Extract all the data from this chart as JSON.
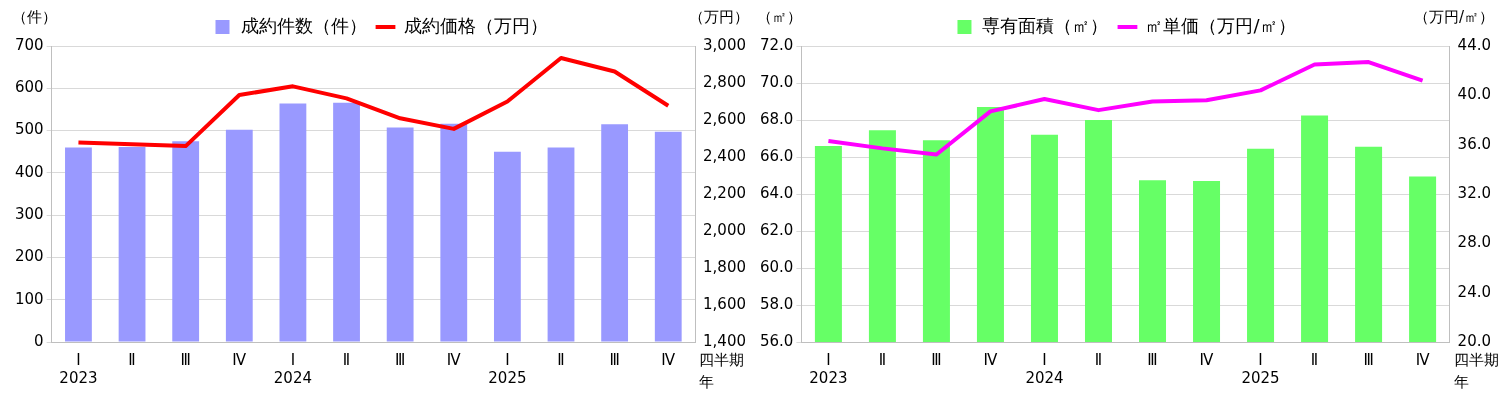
{
  "chart_data": [
    {
      "type": "bar",
      "ylabel": "（件）",
      "y2label": "（万円）",
      "xlabel": "四半期年",
      "categories": [
        "Ⅰ\n2023",
        "Ⅱ",
        "Ⅲ",
        "Ⅳ",
        "Ⅰ\n2024",
        "Ⅱ",
        "Ⅲ",
        "Ⅳ",
        "Ⅰ\n2025",
        "Ⅱ",
        "Ⅲ",
        "Ⅳ"
      ],
      "series": [
        {
          "name": "成約件数（件）",
          "color": "#9999ff",
          "values": [
            460,
            461,
            475,
            502,
            564,
            566,
            507,
            516,
            450,
            460,
            515,
            497
          ]
        },
        {
          "name": "成約価格（万円）",
          "type": "line",
          "axis": "y2",
          "color": "#ff0000",
          "values": [
            2479,
            2469,
            2459,
            2735,
            2782,
            2717,
            2609,
            2552,
            2700,
            2935,
            2862,
            2677
          ]
        }
      ],
      "ylim": [
        0,
        700
      ],
      "yticks": [
        0,
        100,
        200,
        300,
        400,
        500,
        600,
        700
      ],
      "y2lim": [
        1400,
        3000
      ],
      "y2ticks": [
        {
          "value": 1400,
          "label": "1,400"
        },
        {
          "value": 1600,
          "label": "1,600"
        },
        {
          "value": 1800,
          "label": "1,800"
        },
        {
          "value": 2000,
          "label": "2,000"
        },
        {
          "value": 2200,
          "label": "2,200"
        },
        {
          "value": 2400,
          "label": "2,400"
        },
        {
          "value": 2600,
          "label": "2,600"
        },
        {
          "value": 2800,
          "label": "2,800"
        },
        {
          "value": 3000,
          "label": "3,000"
        }
      ],
      "grid": "y",
      "legend": "top",
      "marker": "none"
    },
    {
      "type": "bar",
      "ylabel": "（㎡）",
      "y2label": "（万円/㎡）",
      "xlabel": "四半期年",
      "categories": [
        "Ⅰ\n2023",
        "Ⅱ",
        "Ⅲ",
        "Ⅳ",
        "Ⅰ\n2024",
        "Ⅱ",
        "Ⅲ",
        "Ⅳ",
        "Ⅰ\n2025",
        "Ⅱ",
        "Ⅲ",
        "Ⅳ"
      ],
      "series": [
        {
          "name": "専有面積（㎡）",
          "color": "#66ff66",
          "values": [
            66.6,
            67.45,
            66.9,
            68.7,
            67.2,
            68.0,
            64.75,
            64.7,
            66.45,
            68.25,
            66.55,
            64.95
          ]
        },
        {
          "name": "㎡単価（万円/㎡）",
          "type": "line",
          "axis": "y2",
          "color": "#ff00ff",
          "values": [
            36.3,
            35.7,
            35.2,
            38.7,
            39.7,
            38.8,
            39.5,
            39.6,
            40.4,
            42.5,
            42.7,
            41.2
          ]
        }
      ],
      "ylim": [
        56,
        72
      ],
      "yticks": [
        {
          "value": 56,
          "label": "56.0"
        },
        {
          "value": 58,
          "label": "58.0"
        },
        {
          "value": 60,
          "label": "60.0"
        },
        {
          "value": 62,
          "label": "62.0"
        },
        {
          "value": 64,
          "label": "64.0"
        },
        {
          "value": 66,
          "label": "66.0"
        },
        {
          "value": 68,
          "label": "68.0"
        },
        {
          "value": 70,
          "label": "70.0"
        },
        {
          "value": 72,
          "label": "72.0"
        }
      ],
      "y2lim": [
        20,
        44
      ],
      "y2ticks": [
        {
          "value": 20,
          "label": "20.0"
        },
        {
          "value": 24,
          "label": "24.0"
        },
        {
          "value": 28,
          "label": "28.0"
        },
        {
          "value": 32,
          "label": "32.0"
        },
        {
          "value": 36,
          "label": "36.0"
        },
        {
          "value": 40,
          "label": "40.0"
        },
        {
          "value": 44,
          "label": "44.0"
        }
      ],
      "grid": "y",
      "legend": "top",
      "marker": "none"
    }
  ]
}
